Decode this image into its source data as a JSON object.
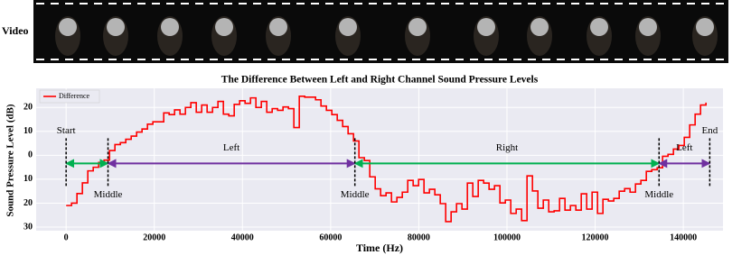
{
  "video_label": "Video",
  "chart_data": {
    "type": "line",
    "title": "The Difference Between Left and Right Channel Sound Pressure Levels",
    "xlabel": "Time (Hz)",
    "ylabel": "Sound Pressure Level (dB)",
    "x": [
      0,
      1230,
      2460,
      3690,
      4920,
      6150,
      7380,
      8610,
      9840,
      11070,
      12300,
      13530,
      14760,
      15990,
      17220,
      18450,
      19680,
      20910,
      22140,
      23370,
      24600,
      25830,
      27060,
      28290,
      29520,
      30750,
      31980,
      33210,
      34440,
      35670,
      36900,
      38130,
      39360,
      40590,
      41820,
      43050,
      44280,
      45510,
      46740,
      47970,
      49200,
      50430,
      51660,
      52890,
      54120,
      55350,
      56580,
      57810,
      59040,
      60270,
      61500,
      62730,
      63960,
      65190,
      66420,
      67650,
      68880,
      70110,
      71340,
      72570,
      73800,
      75030,
      76260,
      77490,
      78720,
      79950,
      81180,
      82410,
      83640,
      84870,
      86100,
      87330,
      88560,
      89790,
      91020,
      92250,
      93480,
      94710,
      95940,
      97170,
      98400,
      99630,
      100860,
      102090,
      103320,
      104550,
      105780,
      107010,
      108240,
      109470,
      110700,
      111930,
      113160,
      114390,
      115620,
      116850,
      118080,
      119310,
      120540,
      121770,
      123000,
      124230,
      125460,
      126690,
      127920,
      129150,
      130380,
      131610,
      132840,
      134070,
      135300,
      136530,
      137760,
      138990,
      140220,
      141450,
      142680,
      143910,
      145140
    ],
    "series": [
      {
        "name": "Difference",
        "color": "#ff0000",
        "values": [
          -21,
          -20,
          -16,
          -11.5,
          -6.5,
          -5,
          -3,
          -2,
          2,
          4.5,
          5.3,
          6.7,
          8,
          9.7,
          11,
          13,
          14,
          14,
          17.7,
          17,
          19,
          17.2,
          20,
          22,
          18,
          21,
          18,
          20,
          22.5,
          17.2,
          16.5,
          21.3,
          22.8,
          21.7,
          24,
          20,
          22.5,
          18,
          19.5,
          18.8,
          20.2,
          19.5,
          11.6,
          24.7,
          24.3,
          24.3,
          23.2,
          20.6,
          18.8,
          17,
          14.6,
          12,
          9,
          6,
          -1,
          -2.2,
          -9,
          -14,
          -16.9,
          -15.7,
          -19.5,
          -17.6,
          -15.4,
          -10.5,
          -12.7,
          -10.1,
          -15.7,
          -14.2,
          -16.5,
          -20.2,
          -27.7,
          -23.6,
          -20.2,
          -22.5,
          -11.6,
          -17.2,
          -10.5,
          -11.6,
          -14.2,
          -12.7,
          -19.9,
          -18.7,
          -24.3,
          -22.5,
          -27.3,
          -8.6,
          -14.9,
          -22.1,
          -18.7,
          -23.6,
          -23.2,
          -18,
          -22.9,
          -21,
          -22.9,
          -16.1,
          -22.5,
          -15.4,
          -24.3,
          -18.4,
          -19.1,
          -18,
          -15,
          -13.9,
          -15.4,
          -12,
          -10.5,
          -6.7,
          -6,
          -5.2,
          -0.4,
          0.4,
          2.6,
          4.1,
          7.5,
          12.7,
          17.2,
          21,
          22
        ]
      }
    ],
    "step": "post",
    "xlim": [
      -6800,
      149000
    ],
    "ylim": [
      -31.5,
      28
    ],
    "xticks": [
      0,
      20000,
      40000,
      60000,
      80000,
      100000,
      120000,
      140000
    ],
    "yticks": [
      {
        "value": -30,
        "label": "30"
      },
      {
        "value": -20,
        "label": "20"
      },
      {
        "value": -10,
        "label": "10"
      },
      0,
      10,
      20
    ],
    "grid": true,
    "legend": "upper left",
    "boundaries": [
      {
        "x": 0,
        "label": "Start"
      },
      {
        "x": 9500,
        "label": "Middle"
      },
      {
        "x": 65500,
        "label": "Middle"
      },
      {
        "x": 134500,
        "label": "Middle"
      },
      {
        "x": 146000,
        "label": "End"
      }
    ],
    "regions": [
      {
        "label": "Left",
        "from": 9500,
        "to": 65500,
        "color": "#7030a0"
      },
      {
        "label": "Right",
        "from": 65500,
        "to": 134500,
        "color": "#00b050"
      },
      {
        "label": "Left",
        "from": 134500,
        "to": 146000,
        "color": "#7030a0"
      }
    ],
    "edge_regions": [
      {
        "from": 0,
        "to": 9500,
        "color": "#00b050"
      }
    ]
  }
}
